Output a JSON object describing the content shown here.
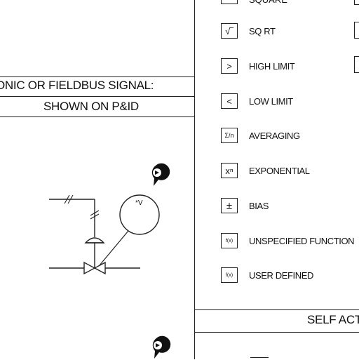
{
  "left_panel": {
    "header_row1": "ONIC OR FIELDBUS SIGNAL:",
    "header_row2": "SHOWN ON P&ID",
    "instrument_bubble_text": "*V"
  },
  "function_list": {
    "items": [
      {
        "symbol": "",
        "label": ""
      },
      {
        "symbol": "√‾",
        "label": "SQ RT"
      },
      {
        "symbol": ">",
        "label": "HIGH LIMIT"
      },
      {
        "symbol": "<",
        "label": "LOW LIMIT"
      },
      {
        "symbol": "Σ/n",
        "label": "AVERAGING"
      },
      {
        "symbol": "xⁿ",
        "label": "EXPONENTIAL"
      },
      {
        "symbol": "±",
        "label": "BIAS"
      },
      {
        "symbol": "f(x)",
        "label": "UNSPECIFIED FUNCTION"
      },
      {
        "symbol": "f(x)",
        "label": "USER DEFINED"
      }
    ]
  },
  "self_actuated": {
    "header": "SELF ACT"
  },
  "colors": {
    "line": "#222222",
    "marker": "#111111",
    "background": "#ffffff"
  },
  "icons": [
    "location-pin-icon",
    "control-valve-icon",
    "instrument-bubble-icon"
  ]
}
